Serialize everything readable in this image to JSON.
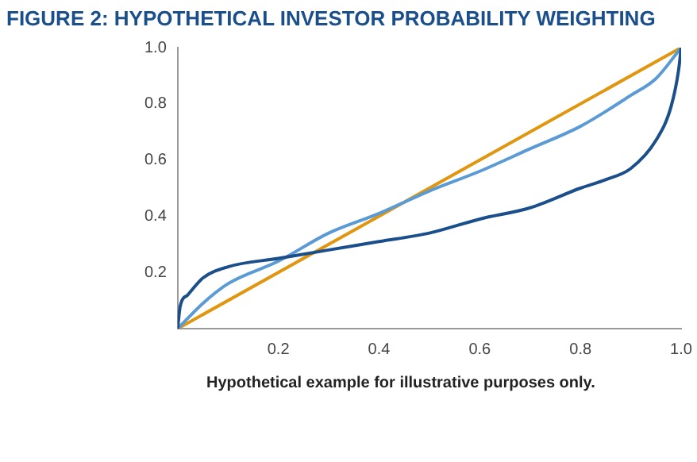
{
  "chart_data": {
    "type": "line",
    "title": "FIGURE 2: HYPOTHETICAL INVESTOR PROBABILITY WEIGHTING",
    "annotations": [
      "Hypothetical example for illustrative purposes only."
    ],
    "xlim": [
      0,
      1
    ],
    "ylim": [
      0,
      1
    ],
    "xticks": [
      0.2,
      0.4,
      0.6,
      0.8,
      {
        "value": 1,
        "label": "1.0"
      }
    ],
    "yticks": [
      0.2,
      0.4,
      0.6,
      0.8,
      {
        "value": 1,
        "label": "1.0"
      }
    ],
    "grid": false,
    "legend": false,
    "marker": "none",
    "line_style": "solid",
    "series": [
      {
        "color": "#1b4f8c",
        "x": [
          0,
          0.005,
          0.02,
          0.05,
          0.1,
          0.2,
          0.3,
          0.4,
          0.5,
          0.6,
          0.7,
          0.8,
          0.85,
          0.9,
          0.95,
          0.98,
          0.995,
          1
        ],
        "values": [
          0,
          0.08,
          0.12,
          0.18,
          0.22,
          0.25,
          0.28,
          0.31,
          0.34,
          0.39,
          0.43,
          0.5,
          0.53,
          0.57,
          0.67,
          0.79,
          0.92,
          1
        ]
      },
      {
        "color": "#5b9bd5",
        "x": [
          0,
          0.05,
          0.1,
          0.2,
          0.3,
          0.4,
          0.5,
          0.6,
          0.7,
          0.8,
          0.9,
          0.95,
          1
        ],
        "values": [
          0,
          0.09,
          0.16,
          0.24,
          0.34,
          0.41,
          0.49,
          0.56,
          0.64,
          0.72,
          0.83,
          0.89,
          1
        ]
      },
      {
        "color": "#e0960f",
        "x": [
          0,
          1
        ],
        "values": [
          0,
          1
        ]
      }
    ]
  }
}
